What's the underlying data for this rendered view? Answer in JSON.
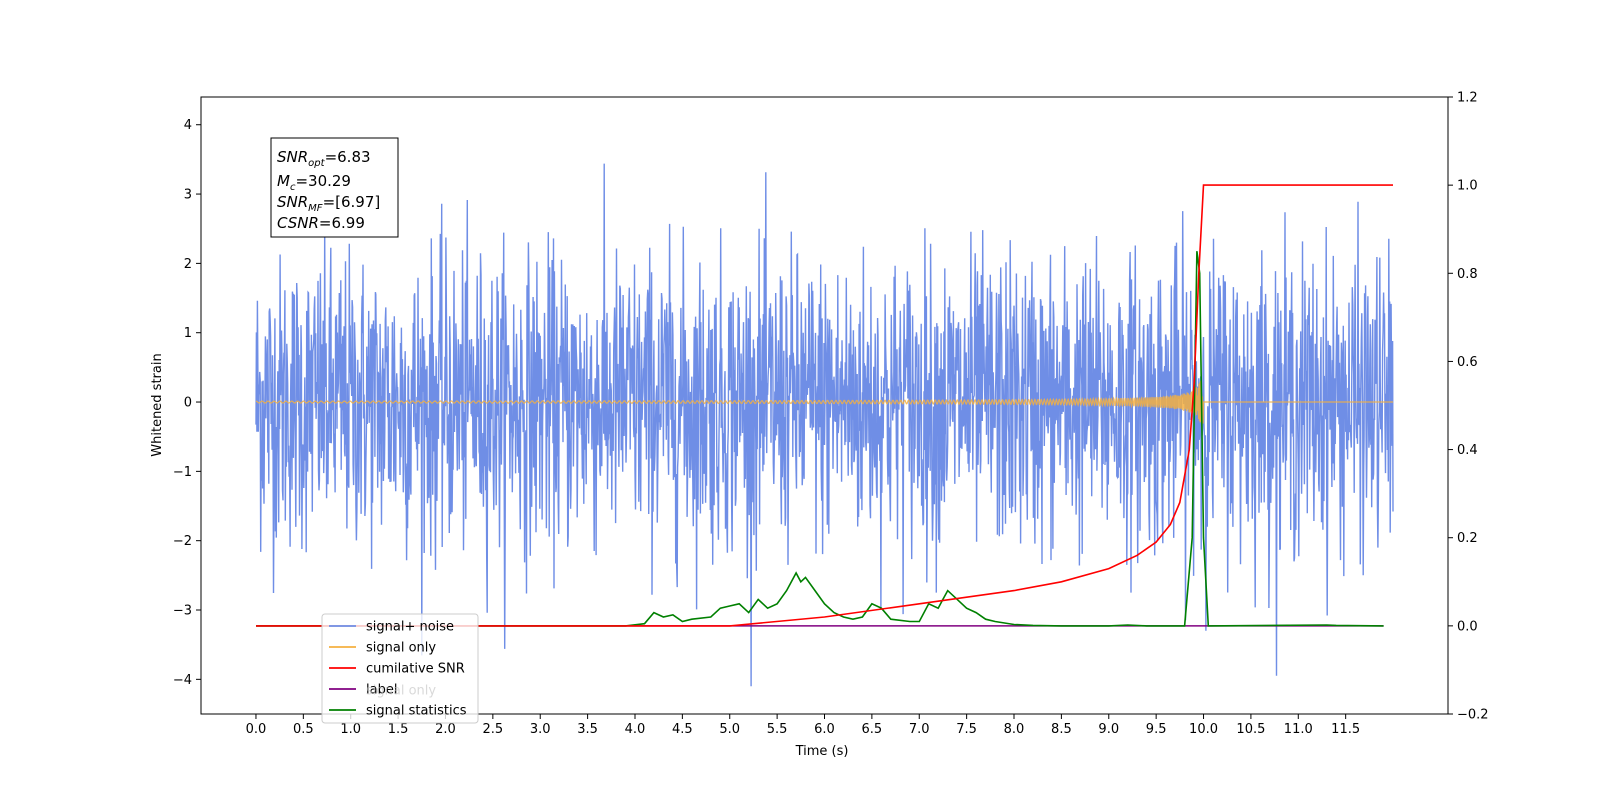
{
  "chart_data": {
    "type": "line",
    "xlabel": "Time (s)",
    "ylabel": "Whitened strain",
    "xlim": [
      -0.58,
      12.58
    ],
    "ylim_left": [
      -4.5,
      4.4
    ],
    "ylim_right": [
      -0.2,
      1.2
    ],
    "x_ticks": [
      "0.0",
      "0.5",
      "1.0",
      "1.5",
      "2.0",
      "2.5",
      "3.0",
      "3.5",
      "4.0",
      "4.5",
      "5.0",
      "5.5",
      "6.0",
      "6.5",
      "7.0",
      "7.5",
      "8.0",
      "8.5",
      "9.0",
      "9.5",
      "10.0",
      "10.5",
      "11.0",
      "11.5"
    ],
    "y_ticks_left": [
      "4",
      "3",
      "2",
      "1",
      "0",
      "−1",
      "−2",
      "−3",
      "−4"
    ],
    "y_ticks_right": [
      "1.2",
      "1.0",
      "0.8",
      "0.6",
      "0.4",
      "0.2",
      "0.0",
      "−0.2"
    ],
    "grid": false,
    "legend_position": "lower-left",
    "annotation": {
      "snr_opt": {
        "sym": "SNR",
        "sub": "opt",
        "value": "=6.83"
      },
      "mc": {
        "sym": "M",
        "sub": "c",
        "value": "=30.29"
      },
      "snr_mf": {
        "sym": "SNR",
        "sub": "MF",
        "value": "=[6.97]"
      },
      "csnr": {
        "sym": "CSNR",
        "sub": "",
        "value": "=6.99"
      }
    },
    "series": [
      {
        "name": "signal+ noise",
        "color": "#6f8ee6",
        "axis": "left",
        "description_values": {
          "x_range": [
            0.0,
            12.0
          ],
          "amplitude_std": 1.0,
          "peak_abs": 4.0
        }
      },
      {
        "name": "signal only",
        "color": "#f5b041",
        "axis": "left",
        "description_values": {
          "merger_time": 10.0,
          "peak_amplitude": 0.55
        }
      },
      {
        "name": "cumilative SNR",
        "color": "#ff0000",
        "axis": "right",
        "x": [
          0.0,
          5.0,
          6.0,
          7.0,
          7.5,
          8.0,
          8.5,
          9.0,
          9.3,
          9.5,
          9.65,
          9.75,
          9.85,
          9.9,
          9.95,
          10.0,
          12.0
        ],
        "y": [
          0.0,
          0.0,
          0.02,
          0.05,
          0.065,
          0.08,
          0.1,
          0.13,
          0.16,
          0.19,
          0.23,
          0.28,
          0.4,
          0.55,
          0.8,
          1.0,
          1.0
        ]
      },
      {
        "name": "label",
        "color": "#800080",
        "axis": "right",
        "x": [
          0.0,
          11.9
        ],
        "y": [
          0.0,
          0.0
        ]
      },
      {
        "name": "signal statistics",
        "color": "#008000",
        "axis": "right",
        "x": [
          0.0,
          3.9,
          4.1,
          4.2,
          4.3,
          4.4,
          4.5,
          4.6,
          4.8,
          4.9,
          5.0,
          5.1,
          5.2,
          5.3,
          5.4,
          5.5,
          5.6,
          5.7,
          5.75,
          5.8,
          5.9,
          6.0,
          6.1,
          6.2,
          6.3,
          6.4,
          6.5,
          6.6,
          6.7,
          6.9,
          7.0,
          7.1,
          7.2,
          7.25,
          7.3,
          7.4,
          7.5,
          7.6,
          7.7,
          7.8,
          8.0,
          8.2,
          8.5,
          9.0,
          9.2,
          9.4,
          9.8,
          9.88,
          9.93,
          9.96,
          10.0,
          10.05,
          11.3,
          11.4,
          11.9
        ],
        "y": [
          0.0,
          0.0,
          0.005,
          0.03,
          0.02,
          0.025,
          0.01,
          0.015,
          0.02,
          0.04,
          0.045,
          0.05,
          0.03,
          0.06,
          0.04,
          0.05,
          0.08,
          0.12,
          0.1,
          0.11,
          0.08,
          0.05,
          0.03,
          0.02,
          0.015,
          0.02,
          0.05,
          0.04,
          0.015,
          0.01,
          0.01,
          0.05,
          0.04,
          0.06,
          0.08,
          0.06,
          0.04,
          0.03,
          0.015,
          0.01,
          0.003,
          0.001,
          0.0,
          0.0,
          0.002,
          0.0,
          0.0,
          0.2,
          0.85,
          0.8,
          0.2,
          0.0,
          0.002,
          0.001,
          0.0
        ]
      }
    ],
    "legend_overlap_text": "signal only"
  }
}
